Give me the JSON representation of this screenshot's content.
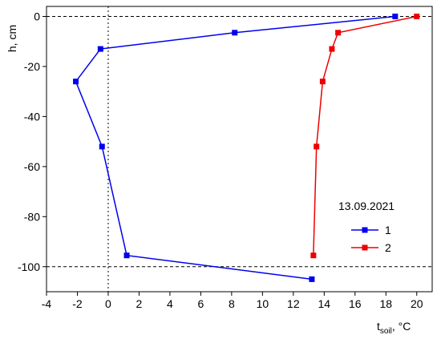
{
  "chart_data": {
    "type": "line",
    "x_label": {
      "main": "t",
      "sub": "soil",
      "unit": ", °C"
    },
    "y_label": "h, cm",
    "legend_title": "13.09.2021",
    "xlim": [
      -4,
      21
    ],
    "ylim": [
      -110,
      4
    ],
    "xticks": [
      -4,
      -2,
      0,
      2,
      4,
      6,
      8,
      10,
      12,
      14,
      16,
      18,
      20
    ],
    "yticks": [
      0,
      -20,
      -40,
      -60,
      -80,
      -100
    ],
    "hlines": [
      0,
      -100
    ],
    "vlines": [
      0
    ],
    "series": [
      {
        "name": "1",
        "color": "#0000ee",
        "x": [
          18.6,
          8.2,
          -0.5,
          -2.1,
          -0.4,
          1.2,
          13.2
        ],
        "y": [
          0,
          -6.5,
          -13,
          -26,
          -52,
          -95.5,
          -105
        ]
      },
      {
        "name": "2",
        "color": "#ee0000",
        "x": [
          20,
          14.9,
          14.5,
          13.9,
          13.5,
          13.3
        ],
        "y": [
          0,
          -6.5,
          -13,
          -26,
          -52,
          -95.5
        ]
      }
    ]
  }
}
